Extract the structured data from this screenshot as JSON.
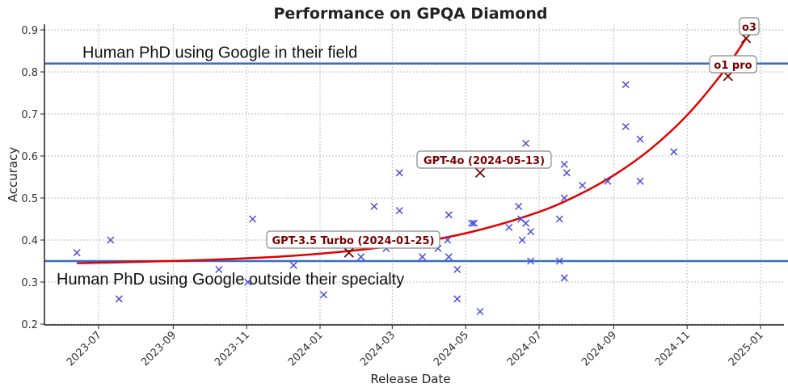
{
  "chart_data": {
    "type": "scatter",
    "title": "Performance on GPQA Diamond",
    "xlabel": "Release Date",
    "ylabel": "Accuracy",
    "xlim": [
      "2023-05-28",
      "2025-01-15"
    ],
    "ylim": [
      0.19,
      0.92
    ],
    "grid": true,
    "x_ticks": [
      "2023-07",
      "2023-09",
      "2023-11",
      "2024-01",
      "2024-03",
      "2024-05",
      "2024-07",
      "2024-09",
      "2024-11",
      "2025-01"
    ],
    "y_ticks": [
      "0.2",
      "0.3",
      "0.4",
      "0.5",
      "0.6",
      "0.7",
      "0.8",
      "0.9"
    ],
    "marker_color": "#4b4bdc",
    "highlight_color": "#7a0000",
    "trend_color": "#e00000",
    "reference_color": "#3a6bc4",
    "reference_lines": [
      {
        "value": 0.82,
        "label": "Human PhD using Google in their field"
      },
      {
        "value": 0.35,
        "label": "Human PhD using Google outside their specialty"
      }
    ],
    "points": [
      [
        "2023-06-13",
        0.37
      ],
      [
        "2023-07-11",
        0.4
      ],
      [
        "2023-07-18",
        0.26
      ],
      [
        "2023-10-09",
        0.33
      ],
      [
        "2023-11-06",
        0.45
      ],
      [
        "2023-11-02",
        0.3
      ],
      [
        "2023-12-10",
        0.34
      ],
      [
        "2024-01-04",
        0.27
      ],
      [
        "2024-02-04",
        0.36
      ],
      [
        "2024-02-15",
        0.48
      ],
      [
        "2024-02-25",
        0.38
      ],
      [
        "2024-03-07",
        0.56
      ],
      [
        "2024-03-07",
        0.47
      ],
      [
        "2024-03-26",
        0.36
      ],
      [
        "2024-04-08",
        0.38
      ],
      [
        "2024-04-17",
        0.46
      ],
      [
        "2024-04-16",
        0.4
      ],
      [
        "2024-04-17",
        0.36
      ],
      [
        "2024-04-24",
        0.33
      ],
      [
        "2024-04-24",
        0.26
      ],
      [
        "2024-05-06",
        0.44
      ],
      [
        "2024-05-08",
        0.44
      ],
      [
        "2024-05-13",
        0.23
      ],
      [
        "2024-06-06",
        0.43
      ],
      [
        "2024-06-14",
        0.48
      ],
      [
        "2024-06-16",
        0.45
      ],
      [
        "2024-06-20",
        0.63
      ],
      [
        "2024-06-20",
        0.44
      ],
      [
        "2024-06-17",
        0.4
      ],
      [
        "2024-06-24",
        0.42
      ],
      [
        "2024-06-24",
        0.35
      ],
      [
        "2024-07-18",
        0.45
      ],
      [
        "2024-07-18",
        0.35
      ],
      [
        "2024-07-22",
        0.58
      ],
      [
        "2024-07-24",
        0.56
      ],
      [
        "2024-07-22",
        0.5
      ],
      [
        "2024-07-22",
        0.31
      ],
      [
        "2024-08-06",
        0.53
      ],
      [
        "2024-08-27",
        0.54
      ],
      [
        "2024-09-11",
        0.77
      ],
      [
        "2024-09-11",
        0.67
      ],
      [
        "2024-09-23",
        0.64
      ],
      [
        "2024-09-23",
        0.54
      ],
      [
        "2024-10-21",
        0.61
      ]
    ],
    "highlighted": [
      {
        "label": "GPT-3.5 Turbo (2024-01-25)",
        "date": "2024-01-25",
        "value": 0.37
      },
      {
        "label": "GPT-4o (2024-05-13)",
        "date": "2024-05-13",
        "value": 0.56
      },
      {
        "label": "o1 pro",
        "date": "2024-12-05",
        "value": 0.79
      },
      {
        "label": "o3",
        "date": "2024-12-20",
        "value": 0.88
      }
    ],
    "trend": [
      [
        "2023-06-13",
        0.345
      ],
      [
        "2023-08-01",
        0.348
      ],
      [
        "2023-10-01",
        0.353
      ],
      [
        "2023-12-01",
        0.361
      ],
      [
        "2024-02-01",
        0.376
      ],
      [
        "2024-04-01",
        0.399
      ],
      [
        "2024-05-15",
        0.426
      ],
      [
        "2024-07-01",
        0.467
      ],
      [
        "2024-08-01",
        0.505
      ],
      [
        "2024-09-01",
        0.554
      ],
      [
        "2024-10-01",
        0.615
      ],
      [
        "2024-11-01",
        0.697
      ],
      [
        "2024-12-01",
        0.8
      ],
      [
        "2024-12-20",
        0.88
      ]
    ]
  }
}
